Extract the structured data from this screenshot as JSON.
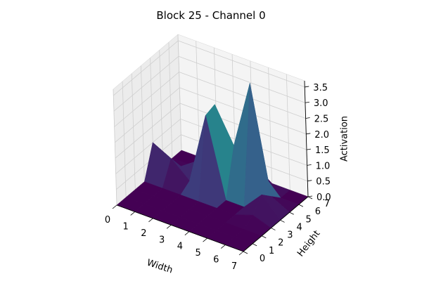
{
  "chart_data": {
    "type": "surface3d",
    "title": "Block 25 - Channel 0",
    "xlabel": "Width",
    "ylabel": "Height",
    "zlabel": "Activation",
    "x": [
      0,
      1,
      2,
      3,
      4,
      5,
      6,
      7
    ],
    "y": [
      0,
      1,
      2,
      3,
      4,
      5,
      6,
      7
    ],
    "xlim": [
      0,
      7
    ],
    "ylim": [
      0,
      7
    ],
    "zlim": [
      0,
      3.7
    ],
    "x_ticks": [
      "0",
      "1",
      "2",
      "3",
      "4",
      "5",
      "6",
      "7"
    ],
    "y_ticks": [
      "0",
      "1",
      "2",
      "3",
      "4",
      "5",
      "6",
      "7"
    ],
    "z_ticks": [
      "0.0",
      "0.5",
      "1.0",
      "1.5",
      "2.0",
      "2.5",
      "3.0",
      "3.5"
    ],
    "colormap": "viridis",
    "grid": true,
    "z_values_by_height_row": [
      [
        0.0,
        0.0,
        0.0,
        0.0,
        0.0,
        0.0,
        0.0,
        0.0
      ],
      [
        0.0,
        0.0,
        0.0,
        0.0,
        0.0,
        0.0,
        0.0,
        0.0
      ],
      [
        0.0,
        0.0,
        0.0,
        0.0,
        0.0,
        0.0,
        0.0,
        0.0
      ],
      [
        0.0,
        0.0,
        0.0,
        0.0,
        0.0,
        0.0,
        0.2,
        0.0
      ],
      [
        1.0,
        0.7,
        0.2,
        2.5,
        0.0,
        0.0,
        0.6,
        0.0
      ],
      [
        0.0,
        0.2,
        0.6,
        2.6,
        1.5,
        3.7,
        0.3,
        0.0
      ],
      [
        0.0,
        0.0,
        0.2,
        0.4,
        0.9,
        0.6,
        0.0,
        0.0
      ],
      [
        0.0,
        0.0,
        0.0,
        0.0,
        0.0,
        0.0,
        0.0,
        0.0
      ]
    ]
  }
}
